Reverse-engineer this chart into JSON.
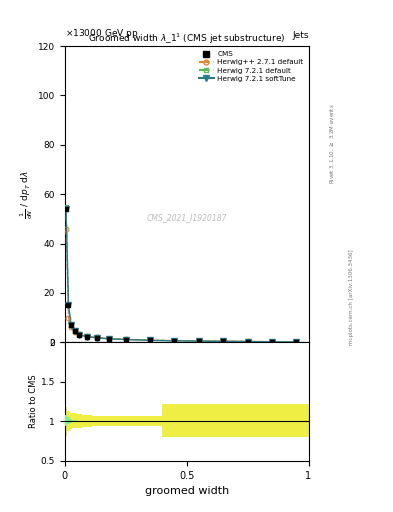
{
  "title": "Groomed width $\\lambda_1^1$ (CMS jet substructure)",
  "header_left": "\\times13000 GeV pp",
  "header_right": "Jets",
  "watermark": "CMS_2021_I1920187",
  "right_label1": "mcplots.cern.ch [arXiv:1306.3436]",
  "right_label2": "Rivet 3.1.10, \\geq 3.2M events",
  "xlabel": "groomed width",
  "ylabel_main": "1 / mathrm{d}N / mathrm{d}p_T mathrm{d}lambda",
  "ylabel_ratio": "Ratio to CMS",
  "ylim_main": [
    0,
    120
  ],
  "ylim_ratio": [
    0.5,
    2.0
  ],
  "yticks_main": [
    0,
    20,
    40,
    60,
    80,
    100,
    120
  ],
  "xlim": [
    0,
    1.0
  ],
  "xticks": [
    0,
    0.5,
    1.0
  ],
  "cms_x": [
    0.005,
    0.015,
    0.025,
    0.04,
    0.06,
    0.09,
    0.13,
    0.18,
    0.25,
    0.35,
    0.45,
    0.55,
    0.65,
    0.75,
    0.85,
    0.95
  ],
  "cms_y": [
    54,
    15,
    7,
    4.5,
    3,
    2.2,
    1.8,
    1.4,
    1.1,
    0.8,
    0.6,
    0.5,
    0.4,
    0.3,
    0.2,
    0.15
  ],
  "herwig_pp_x": [
    0.005,
    0.015,
    0.025,
    0.04,
    0.06,
    0.09,
    0.13,
    0.18,
    0.25,
    0.35,
    0.45,
    0.55,
    0.65,
    0.75,
    0.85,
    0.95
  ],
  "herwig_pp_y": [
    46,
    10,
    6,
    4.0,
    3.2,
    2.5,
    2.0,
    1.5,
    1.2,
    0.9,
    0.7,
    0.6,
    0.5,
    0.4,
    0.3,
    0.2
  ],
  "herwig721d_x": [
    0.005,
    0.015,
    0.025,
    0.04,
    0.06,
    0.09,
    0.13,
    0.18,
    0.25,
    0.35,
    0.45,
    0.55,
    0.65,
    0.75,
    0.85,
    0.95
  ],
  "herwig721d_y": [
    55,
    15,
    7.5,
    4.8,
    3.1,
    2.3,
    1.9,
    1.5,
    1.2,
    0.85,
    0.65,
    0.55,
    0.45,
    0.35,
    0.25,
    0.18
  ],
  "herwig721s_x": [
    0.005,
    0.015,
    0.025,
    0.04,
    0.06,
    0.09,
    0.13,
    0.18,
    0.25,
    0.35,
    0.45,
    0.55,
    0.65,
    0.75,
    0.85,
    0.95
  ],
  "herwig721s_y": [
    54,
    15,
    7,
    4.5,
    3.0,
    2.2,
    1.8,
    1.4,
    1.1,
    0.8,
    0.6,
    0.5,
    0.4,
    0.3,
    0.2,
    0.15
  ],
  "ratio_edges": [
    0.0,
    0.01,
    0.02,
    0.03,
    0.05,
    0.07,
    0.11,
    0.15,
    0.21,
    0.3,
    0.4,
    0.5,
    0.6,
    0.7,
    0.8,
    0.9,
    1.0
  ],
  "green_lo": [
    0.94,
    0.97,
    0.98,
    0.985,
    0.99,
    0.995,
    0.998,
    0.998,
    0.998,
    0.998,
    0.998,
    0.998,
    0.998,
    0.998,
    0.998,
    0.998
  ],
  "green_hi": [
    1.08,
    1.05,
    1.03,
    1.02,
    1.01,
    1.005,
    1.002,
    1.002,
    1.002,
    1.002,
    1.002,
    1.002,
    1.002,
    1.002,
    1.002,
    1.002
  ],
  "yellow_lo": [
    0.82,
    0.88,
    0.9,
    0.91,
    0.92,
    0.93,
    0.94,
    0.94,
    0.94,
    0.94,
    0.8,
    0.8,
    0.8,
    0.8,
    0.8,
    0.8
  ],
  "yellow_hi": [
    1.18,
    1.13,
    1.11,
    1.1,
    1.09,
    1.08,
    1.07,
    1.07,
    1.07,
    1.07,
    1.22,
    1.22,
    1.22,
    1.22,
    1.22,
    1.22
  ],
  "color_cms": "#000000",
  "color_herwig_pp": "#e8842a",
  "color_herwig721d": "#5cb85c",
  "color_herwig721s": "#2b7b8e",
  "color_green": "#88ee88",
  "color_yellow": "#eeee44",
  "bg_color": "#ffffff",
  "dpi": 100
}
